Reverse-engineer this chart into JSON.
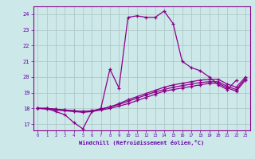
{
  "xlabel": "Windchill (Refroidissement éolien,°C)",
  "xlim": [
    -0.5,
    23.5
  ],
  "ylim": [
    16.6,
    24.5
  ],
  "yticks": [
    17,
    18,
    19,
    20,
    21,
    22,
    23,
    24
  ],
  "xticks": [
    0,
    1,
    2,
    3,
    4,
    5,
    6,
    7,
    8,
    9,
    10,
    11,
    12,
    13,
    14,
    15,
    16,
    17,
    18,
    19,
    20,
    21,
    22,
    23
  ],
  "bg_color": "#cce8e8",
  "line_color": "#8b008b",
  "grid_color": "#b0c8c8",
  "lines": [
    {
      "x": [
        0,
        1,
        2,
        3,
        4,
        5,
        6,
        7,
        8,
        9,
        10,
        11,
        12,
        13,
        14,
        15,
        16,
        17,
        18,
        19,
        20,
        21,
        22
      ],
      "y": [
        18.0,
        18.0,
        17.8,
        17.6,
        17.1,
        16.7,
        17.8,
        18.0,
        20.5,
        19.3,
        23.8,
        23.9,
        23.8,
        23.8,
        24.2,
        23.4,
        21.0,
        20.6,
        20.4,
        20.0,
        19.5,
        19.2,
        19.8
      ]
    },
    {
      "x": [
        0,
        1,
        2,
        3,
        4,
        5,
        6,
        7,
        8,
        9,
        10,
        11,
        12,
        13,
        14,
        15,
        16,
        17,
        18,
        19,
        20,
        21,
        22,
        23
      ],
      "y": [
        18.0,
        17.95,
        17.9,
        17.85,
        17.8,
        17.75,
        17.8,
        17.9,
        18.0,
        18.15,
        18.3,
        18.5,
        18.7,
        18.9,
        19.1,
        19.2,
        19.3,
        19.4,
        19.5,
        19.6,
        19.6,
        19.3,
        19.1,
        19.8
      ]
    },
    {
      "x": [
        0,
        1,
        2,
        3,
        4,
        5,
        6,
        7,
        8,
        9,
        10,
        11,
        12,
        13,
        14,
        15,
        16,
        17,
        18,
        19,
        20,
        21,
        22,
        23
      ],
      "y": [
        18.0,
        18.0,
        17.95,
        17.9,
        17.85,
        17.8,
        17.85,
        17.95,
        18.1,
        18.25,
        18.45,
        18.65,
        18.85,
        19.05,
        19.2,
        19.35,
        19.45,
        19.55,
        19.65,
        19.7,
        19.7,
        19.4,
        19.2,
        19.9
      ]
    },
    {
      "x": [
        0,
        1,
        2,
        3,
        4,
        5,
        6,
        7,
        8,
        9,
        10,
        11,
        12,
        13,
        14,
        15,
        16,
        17,
        18,
        19,
        20,
        21,
        22,
        23
      ],
      "y": [
        18.0,
        18.0,
        17.95,
        17.9,
        17.85,
        17.8,
        17.85,
        17.95,
        18.1,
        18.3,
        18.55,
        18.75,
        18.95,
        19.15,
        19.35,
        19.5,
        19.6,
        19.7,
        19.8,
        19.85,
        19.85,
        19.55,
        19.35,
        20.0
      ]
    }
  ]
}
